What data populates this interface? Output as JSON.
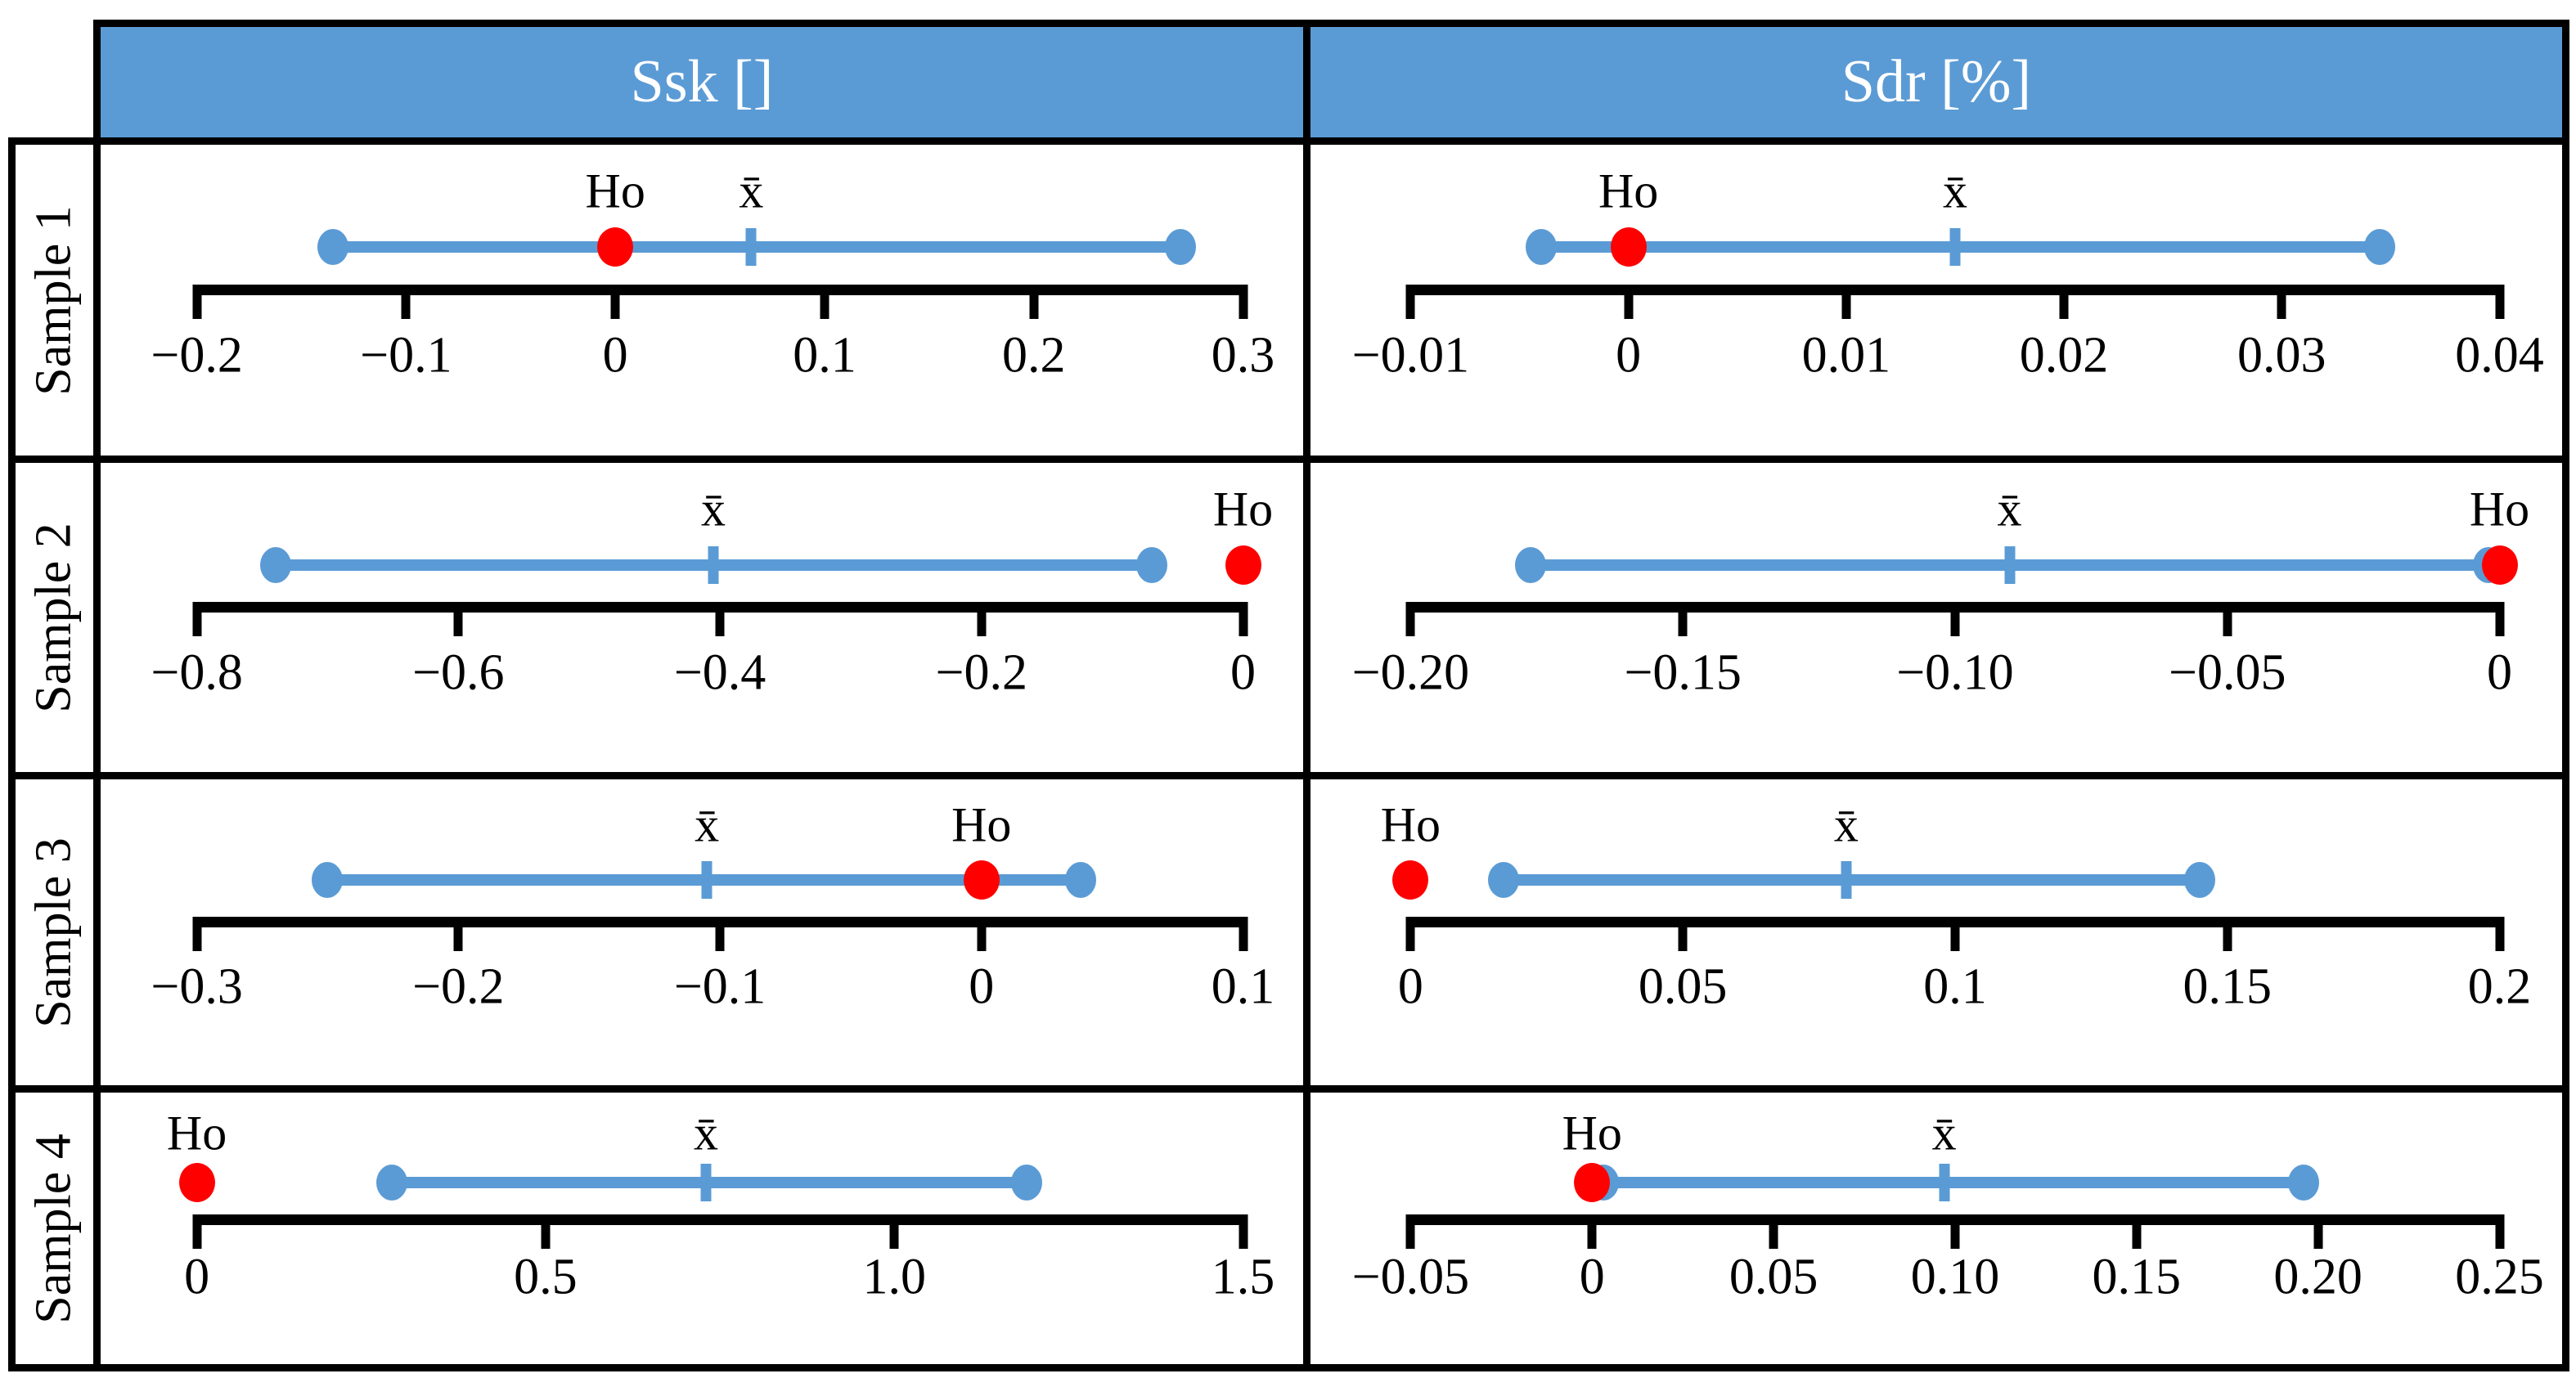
{
  "figure": {
    "description": "Table of one-sample confidence-interval plots comparing sample mean intervals against the null hypothesis value Ho for surface parameters Ssk and Sdr"
  },
  "table": {
    "columns": [
      {
        "label": "Ssk []"
      },
      {
        "label": "Sdr [%]"
      }
    ],
    "rows": [
      {
        "label": "Sample 1"
      },
      {
        "label": "Sample 2"
      },
      {
        "label": "Sample 3"
      },
      {
        "label": "Sample 4"
      }
    ]
  },
  "labels": {
    "ho": "Ho",
    "mean": "x̄"
  },
  "colors": {
    "header_bg": "#5b9bd5",
    "header_text": "#ffffff",
    "interval_blue": "#5b9bd5",
    "ho_red": "#ff0000",
    "axis_black": "#000000",
    "border_black": "#000000"
  },
  "chart_data": [
    {
      "row": "Sample 1",
      "column": "Ssk []",
      "type": "interval",
      "axis_range": [
        -0.2,
        0.3
      ],
      "ticks": [
        -0.2,
        -0.1,
        0,
        0.1,
        0.2,
        0.3
      ],
      "tick_labels": [
        "−0.2",
        "−0.1",
        "0",
        "0.1",
        "0.2",
        "0.3"
      ],
      "ci": [
        -0.135,
        0.27
      ],
      "mean": 0.065,
      "ho": 0
    },
    {
      "row": "Sample 1",
      "column": "Sdr [%]",
      "type": "interval",
      "axis_range": [
        -0.01,
        0.04
      ],
      "ticks": [
        -0.01,
        0,
        0.01,
        0.02,
        0.03,
        0.04
      ],
      "tick_labels": [
        "−0.01",
        "0",
        "0.01",
        "0.02",
        "0.03",
        "0.04"
      ],
      "ci": [
        -0.004,
        0.0345
      ],
      "mean": 0.015,
      "ho": 0
    },
    {
      "row": "Sample 2",
      "column": "Ssk []",
      "type": "interval",
      "axis_range": [
        -0.8,
        0
      ],
      "ticks": [
        -0.8,
        -0.6,
        -0.4,
        -0.2,
        0
      ],
      "tick_labels": [
        "−0.8",
        "−0.6",
        "−0.4",
        "−0.2",
        "0"
      ],
      "ci": [
        -0.74,
        -0.07
      ],
      "mean": -0.405,
      "ho": 0
    },
    {
      "row": "Sample 2",
      "column": "Sdr [%]",
      "type": "interval",
      "axis_range": [
        -0.2,
        0
      ],
      "ticks": [
        -0.2,
        -0.15,
        -0.1,
        -0.05,
        0
      ],
      "tick_labels": [
        "−0.20",
        "−0.15",
        "−0.10",
        "−0.05",
        "0"
      ],
      "ci": [
        -0.178,
        -0.002
      ],
      "mean": -0.09,
      "ho": 0
    },
    {
      "row": "Sample 3",
      "column": "Ssk []",
      "type": "interval",
      "axis_range": [
        -0.3,
        0.1
      ],
      "ticks": [
        -0.3,
        -0.2,
        -0.1,
        0,
        0.1
      ],
      "tick_labels": [
        "−0.3",
        "−0.2",
        "−0.1",
        "0",
        "0.1"
      ],
      "ci": [
        -0.25,
        0.038
      ],
      "mean": -0.105,
      "ho": 0
    },
    {
      "row": "Sample 3",
      "column": "Sdr [%]",
      "type": "interval",
      "axis_range": [
        0,
        0.2
      ],
      "ticks": [
        0,
        0.05,
        0.1,
        0.15,
        0.2
      ],
      "tick_labels": [
        "0",
        "0.05",
        "0.1",
        "0.15",
        "0.2"
      ],
      "ci": [
        0.017,
        0.145
      ],
      "mean": 0.08,
      "ho": 0
    },
    {
      "row": "Sample 4",
      "column": "Ssk []",
      "type": "interval",
      "axis_range": [
        0,
        1.5
      ],
      "ticks": [
        0,
        0.5,
        1.0,
        1.5
      ],
      "tick_labels": [
        "0",
        "0.5",
        "1.0",
        "1.5"
      ],
      "ci": [
        0.28,
        1.19
      ],
      "mean": 0.73,
      "ho": 0
    },
    {
      "row": "Sample 4",
      "column": "Sdr [%]",
      "type": "interval",
      "axis_range": [
        -0.05,
        0.25
      ],
      "ticks": [
        -0.05,
        0,
        0.05,
        0.1,
        0.15,
        0.2,
        0.25
      ],
      "tick_labels": [
        "−0.05",
        "0",
        "0.05",
        "0.10",
        "0.15",
        "0.20",
        "0.25"
      ],
      "ci": [
        0.003,
        0.196
      ],
      "mean": 0.097,
      "ho": 0
    }
  ]
}
